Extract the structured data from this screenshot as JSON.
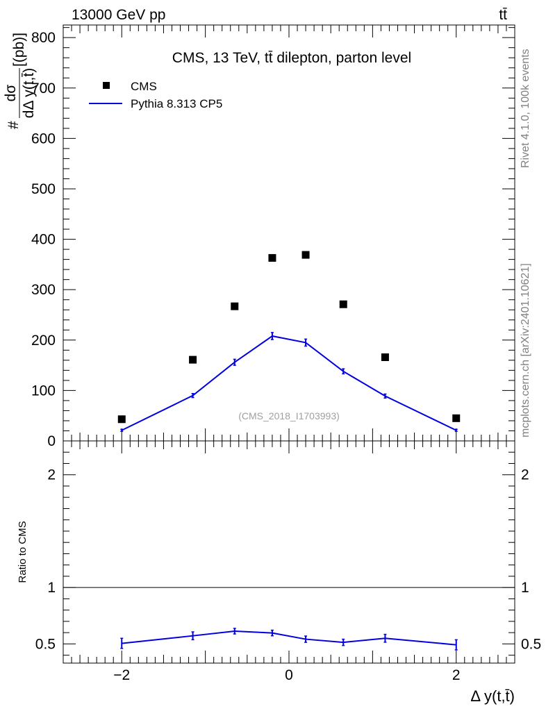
{
  "header": {
    "beam": "13000 GeV pp",
    "process": "tt̄"
  },
  "side_text": {
    "rivet": "Rivet 4.1.0,  100k events",
    "mcplots": "mcplots.cern.ch [arXiv:2401.10621]"
  },
  "chart_data": [
    {
      "type": "scatter",
      "title": "CMS, 13 TeV, tt̄ dilepton, parton level",
      "ylabel_prefix": "#",
      "ylabel_num": "dσ",
      "ylabel_den": "dΔ y(t,t̄)",
      "ylabel_unit": "[(pb)]",
      "watermark": "(CMS_2018_I1703993)",
      "xlim": [
        -2.7,
        2.7
      ],
      "ylim": [
        0,
        825
      ],
      "xticks": [
        -2,
        0,
        2
      ],
      "yticks": [
        0,
        100,
        200,
        300,
        400,
        500,
        600,
        700,
        800
      ],
      "legend": [
        {
          "label": "CMS",
          "marker": "square",
          "color": "#000000"
        },
        {
          "label": "Pythia 8.313 CP5",
          "marker": "line",
          "color": "#0000e0"
        }
      ],
      "series": [
        {
          "name": "CMS",
          "x": [
            -2.0,
            -1.15,
            -0.65,
            -0.2,
            0.2,
            0.65,
            1.15,
            2.0
          ],
          "y": [
            43,
            161,
            267,
            363,
            369,
            271,
            166,
            45
          ]
        },
        {
          "name": "Pythia 8.313 CP5",
          "x": [
            -2.0,
            -1.15,
            -0.65,
            -0.2,
            0.2,
            0.65,
            1.15,
            2.0
          ],
          "y": [
            21,
            90,
            156,
            208,
            195,
            138,
            89,
            21
          ],
          "err": [
            2,
            4,
            6,
            7,
            7,
            5,
            4,
            2
          ]
        }
      ]
    },
    {
      "type": "line",
      "ylabel": "Ratio to CMS",
      "xlabel": "Δ y(t,t̄)",
      "xlim": [
        -2.7,
        2.7
      ],
      "ylim": [
        0.33,
        2.3
      ],
      "xticks": [
        -2,
        0,
        2
      ],
      "yticks": [
        0.5,
        1,
        2
      ],
      "ytick_labels": [
        "0.5",
        "1",
        "2"
      ],
      "reference": 1,
      "series": [
        {
          "name": "Pythia 8.313 CP5",
          "x": [
            -2.0,
            -1.15,
            -0.65,
            -0.2,
            0.2,
            0.65,
            1.15,
            2.0
          ],
          "y": [
            0.505,
            0.572,
            0.613,
            0.597,
            0.542,
            0.514,
            0.55,
            0.492
          ],
          "err": [
            0.045,
            0.035,
            0.025,
            0.025,
            0.028,
            0.028,
            0.035,
            0.045
          ]
        }
      ]
    }
  ]
}
